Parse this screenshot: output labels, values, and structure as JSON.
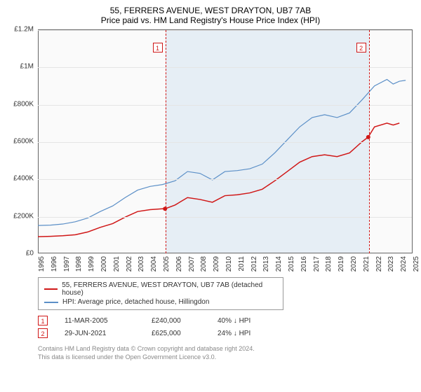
{
  "title_line1": "55, FERRERS AVENUE, WEST DRAYTON, UB7 7AB",
  "title_line2": "Price paid vs. HM Land Registry's House Price Index (HPI)",
  "chart": {
    "type": "line",
    "background_color": "#fafafa",
    "grid_color": "#e5e5e5",
    "axis_color": "#666666",
    "shade_color": "rgba(173,203,230,0.25)",
    "xlim": [
      1995,
      2025
    ],
    "ylim": [
      0,
      1200000
    ],
    "ytick_step": 200000,
    "yticks": [
      "£0",
      "£200K",
      "£400K",
      "£600K",
      "£800K",
      "£1M",
      "£1.2M"
    ],
    "xticks": [
      1995,
      1996,
      1997,
      1998,
      1999,
      2000,
      2001,
      2002,
      2003,
      2004,
      2005,
      2006,
      2007,
      2008,
      2009,
      2010,
      2011,
      2012,
      2013,
      2014,
      2015,
      2016,
      2017,
      2018,
      2019,
      2020,
      2021,
      2022,
      2023,
      2024,
      2025
    ],
    "shade_start": 2005.2,
    "shade_end": 2021.5,
    "series": [
      {
        "name": "price_paid",
        "label": "55, FERRERS AVENUE, WEST DRAYTON, UB7 7AB (detached house)",
        "color": "#d01717",
        "width": 1.5,
        "data": [
          [
            1995,
            90000
          ],
          [
            1996,
            92000
          ],
          [
            1997,
            95000
          ],
          [
            1998,
            100000
          ],
          [
            1999,
            115000
          ],
          [
            2000,
            140000
          ],
          [
            2001,
            160000
          ],
          [
            2002,
            195000
          ],
          [
            2003,
            225000
          ],
          [
            2004,
            235000
          ],
          [
            2005,
            240000
          ],
          [
            2005.2,
            240000
          ],
          [
            2006,
            260000
          ],
          [
            2007,
            300000
          ],
          [
            2008,
            290000
          ],
          [
            2009,
            275000
          ],
          [
            2010,
            310000
          ],
          [
            2011,
            315000
          ],
          [
            2012,
            325000
          ],
          [
            2013,
            345000
          ],
          [
            2014,
            390000
          ],
          [
            2015,
            440000
          ],
          [
            2016,
            490000
          ],
          [
            2017,
            520000
          ],
          [
            2018,
            530000
          ],
          [
            2019,
            520000
          ],
          [
            2020,
            540000
          ],
          [
            2021,
            600000
          ],
          [
            2021.5,
            625000
          ],
          [
            2022,
            680000
          ],
          [
            2023,
            700000
          ],
          [
            2023.5,
            690000
          ],
          [
            2024,
            700000
          ]
        ]
      },
      {
        "name": "hpi",
        "label": "HPI: Average price, detached house, Hillingdon",
        "color": "#5b8fc7",
        "width": 1.2,
        "data": [
          [
            1995,
            150000
          ],
          [
            1996,
            152000
          ],
          [
            1997,
            158000
          ],
          [
            1998,
            170000
          ],
          [
            1999,
            190000
          ],
          [
            2000,
            225000
          ],
          [
            2001,
            255000
          ],
          [
            2002,
            300000
          ],
          [
            2003,
            340000
          ],
          [
            2004,
            360000
          ],
          [
            2005,
            370000
          ],
          [
            2006,
            390000
          ],
          [
            2007,
            440000
          ],
          [
            2008,
            430000
          ],
          [
            2009,
            395000
          ],
          [
            2010,
            440000
          ],
          [
            2011,
            445000
          ],
          [
            2012,
            455000
          ],
          [
            2013,
            480000
          ],
          [
            2014,
            540000
          ],
          [
            2015,
            610000
          ],
          [
            2016,
            680000
          ],
          [
            2017,
            730000
          ],
          [
            2018,
            745000
          ],
          [
            2019,
            730000
          ],
          [
            2020,
            755000
          ],
          [
            2021,
            825000
          ],
          [
            2022,
            900000
          ],
          [
            2023,
            935000
          ],
          [
            2023.5,
            910000
          ],
          [
            2024,
            925000
          ],
          [
            2024.5,
            930000
          ]
        ]
      }
    ],
    "markers": [
      {
        "n": "1",
        "x": 2005.2,
        "y": 240000
      },
      {
        "n": "2",
        "x": 2021.5,
        "y": 625000
      }
    ],
    "label_fontsize": 10
  },
  "legend": {
    "border_color": "#999999"
  },
  "sales": [
    {
      "n": "1",
      "date": "11-MAR-2005",
      "price": "£240,000",
      "diff": "40% ↓ HPI"
    },
    {
      "n": "2",
      "date": "29-JUN-2021",
      "price": "£625,000",
      "diff": "24% ↓ HPI"
    }
  ],
  "footer_line1": "Contains HM Land Registry data © Crown copyright and database right 2024.",
  "footer_line2": "This data is licensed under the Open Government Licence v3.0."
}
